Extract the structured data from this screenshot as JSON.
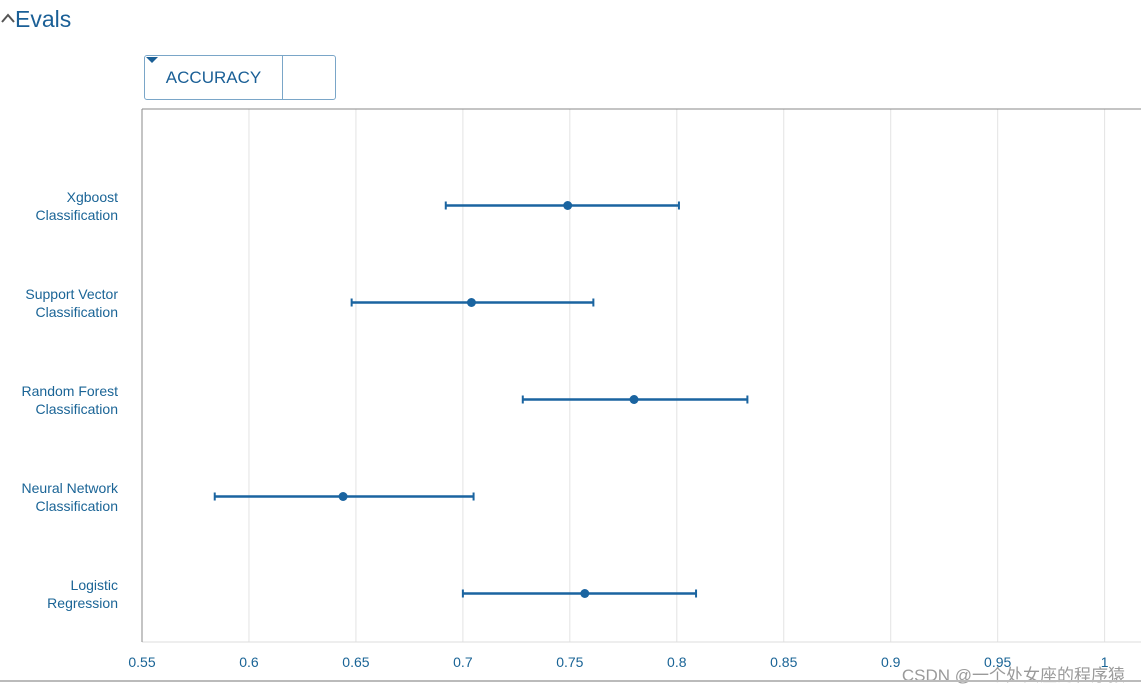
{
  "header": {
    "title": "Evals"
  },
  "dropdown": {
    "label": "ACCURACY"
  },
  "watermark": "CSDN @一个处女座的程序猿",
  "chart_data": {
    "type": "errorbar",
    "categories": [
      "Xgboost Classification",
      "Support Vector Classification",
      "Random Forest Classification",
      "Neural Network Classification",
      "Logistic Regression"
    ],
    "values": [
      0.749,
      0.704,
      0.78,
      0.644,
      0.757
    ],
    "lower": [
      0.692,
      0.648,
      0.728,
      0.584,
      0.7
    ],
    "upper": [
      0.801,
      0.761,
      0.833,
      0.705,
      0.809
    ],
    "color": "#1a64a0",
    "xlim": [
      0.55,
      1.017
    ],
    "xticks": [
      0.55,
      0.6,
      0.65,
      0.7,
      0.75,
      0.8,
      0.85,
      0.9,
      0.95,
      1
    ],
    "grid": true
  }
}
